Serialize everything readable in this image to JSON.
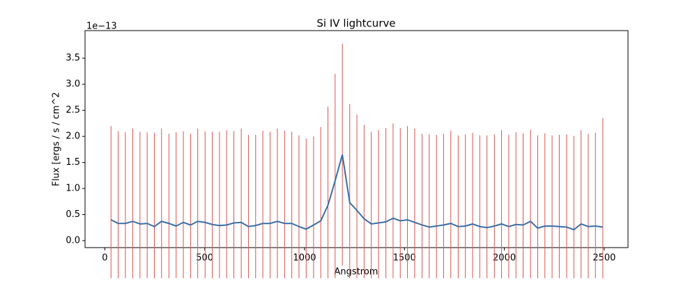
{
  "chart_data": {
    "type": "errorbar",
    "title": "Si IV lightcurve",
    "xlabel": "Angstrom",
    "ylabel": "Flux [ergs / s / cm^2",
    "y_offset_label": "1e−13",
    "x": [
      31,
      67,
      103,
      140,
      176,
      212,
      248,
      284,
      321,
      357,
      393,
      429,
      465,
      502,
      538,
      574,
      610,
      646,
      683,
      719,
      755,
      791,
      827,
      864,
      900,
      936,
      972,
      1008,
      1045,
      1081,
      1117,
      1153,
      1189,
      1226,
      1262,
      1298,
      1334,
      1370,
      1407,
      1443,
      1479,
      1515,
      1551,
      1588,
      1624,
      1660,
      1696,
      1732,
      1769,
      1805,
      1841,
      1877,
      1913,
      1950,
      1986,
      2022,
      2058,
      2094,
      2131,
      2167,
      2203,
      2239,
      2275,
      2312,
      2348,
      2384,
      2420,
      2456,
      2493
    ],
    "series": [
      {
        "color": "#3a6ea5",
        "error_color": "#d9534f",
        "values": [
          0.4,
          0.33,
          0.33,
          0.37,
          0.32,
          0.33,
          0.27,
          0.37,
          0.33,
          0.28,
          0.35,
          0.3,
          0.37,
          0.35,
          0.31,
          0.29,
          0.3,
          0.34,
          0.35,
          0.27,
          0.29,
          0.33,
          0.33,
          0.37,
          0.33,
          0.33,
          0.27,
          0.22,
          0.3,
          0.38,
          0.68,
          1.15,
          1.65,
          0.73,
          0.58,
          0.42,
          0.32,
          0.34,
          0.36,
          0.43,
          0.38,
          0.4,
          0.35,
          0.3,
          0.26,
          0.28,
          0.3,
          0.33,
          0.27,
          0.28,
          0.32,
          0.27,
          0.25,
          0.28,
          0.32,
          0.27,
          0.31,
          0.3,
          0.37,
          0.24,
          0.28,
          0.28,
          0.27,
          0.26,
          0.21,
          0.32,
          0.27,
          0.28,
          0.26
        ],
        "errors": [
          1.8,
          1.77,
          1.75,
          1.78,
          1.77,
          1.75,
          1.8,
          1.78,
          1.72,
          1.8,
          1.75,
          1.75,
          1.78,
          1.75,
          1.78,
          1.8,
          1.82,
          1.76,
          1.8,
          1.76,
          1.74,
          1.78,
          1.76,
          1.78,
          1.78,
          1.76,
          1.75,
          1.74,
          1.7,
          1.8,
          1.89,
          2.05,
          2.13,
          1.89,
          1.84,
          1.8,
          1.77,
          1.78,
          1.8,
          1.82,
          1.78,
          1.8,
          1.8,
          1.75,
          1.78,
          1.75,
          1.75,
          1.78,
          1.75,
          1.76,
          1.75,
          1.75,
          1.77,
          1.76,
          1.8,
          1.76,
          1.77,
          1.76,
          1.76,
          1.78,
          1.78,
          1.74,
          1.76,
          1.78,
          1.8,
          1.8,
          1.78,
          1.79,
          2.09
        ]
      }
    ],
    "xlim": [
      -99,
      2619
    ],
    "ylim": [
      -0.134,
      4.03
    ],
    "xticks": [
      0,
      500,
      1000,
      1500,
      2000,
      2500
    ],
    "yticks": [
      {
        "value": 0,
        "label": "0.0"
      },
      0.5,
      {
        "value": 1,
        "label": "1.0"
      },
      1.5,
      {
        "value": 2,
        "label": "2.0"
      },
      2.5,
      {
        "value": 3,
        "label": "3.0"
      },
      3.5
    ],
    "grid": false
  }
}
